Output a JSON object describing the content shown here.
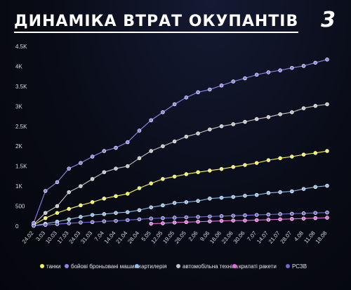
{
  "title": "ДИНАМІКА ВТРАТ ОКУПАНТІВ",
  "logo_text": "3",
  "chart_data": {
    "type": "line",
    "title": "ДИНАМІКА ВТРАТ ОКУПАНТІВ",
    "xlabel": "",
    "ylabel": "",
    "ylim": [
      0,
      4500
    ],
    "y_ticks": [
      0,
      500,
      1000,
      1500,
      2000,
      2500,
      3000,
      3500,
      4000,
      4500
    ],
    "y_tick_labels": [
      "0",
      "500",
      "1K",
      "1.5K",
      "2K",
      "2.5K",
      "3K",
      "3.5K",
      "4K",
      "4.5K"
    ],
    "grid": false,
    "legend_position": "bottom",
    "x": [
      "24.02",
      "3.03",
      "10.03",
      "17.03",
      "24.03",
      "31.03",
      "7.04",
      "14.04",
      "21.04",
      "28.04",
      "5.05",
      "12.05",
      "19.05",
      "26.05",
      "2.06",
      "9.06",
      "16.06",
      "23.06",
      "30.06",
      "7.07",
      "14.07",
      "21.07",
      "28.07",
      "4.08",
      "11.08",
      "18.08"
    ],
    "series": [
      {
        "name": "танки",
        "color": "#f5f54a",
        "values": [
          30,
          200,
          330,
          430,
          520,
          600,
          690,
          750,
          810,
          950,
          1070,
          1180,
          1240,
          1300,
          1350,
          1390,
          1430,
          1480,
          1530,
          1580,
          1650,
          1700,
          1740,
          1790,
          1830,
          1880
        ]
      },
      {
        "name": "бойові броньовані машини",
        "color": "#8b87ea",
        "values": [
          80,
          880,
          1100,
          1440,
          1580,
          1740,
          1880,
          1960,
          2100,
          2390,
          2650,
          2850,
          3050,
          3220,
          3350,
          3420,
          3520,
          3620,
          3700,
          3790,
          3850,
          3900,
          3960,
          4010,
          4090,
          4170
        ]
      },
      {
        "name": "артилерія",
        "color": "#8fbde8",
        "values": [
          10,
          60,
          110,
          170,
          230,
          280,
          300,
          330,
          350,
          400,
          470,
          520,
          580,
          600,
          630,
          690,
          710,
          730,
          760,
          780,
          830,
          850,
          870,
          930,
          980,
          1010
        ]
      },
      {
        "name": "автомобільна техніка",
        "color": "#c4c4c4",
        "values": [
          40,
          330,
          500,
          850,
          1000,
          1180,
          1350,
          1440,
          1500,
          1700,
          1880,
          2000,
          2120,
          2240,
          2320,
          2420,
          2500,
          2550,
          2610,
          2680,
          2730,
          2800,
          2850,
          2950,
          3010,
          3050
        ]
      },
      {
        "name": "крилаті ракети",
        "color": "#e46be0",
        "values": [
          0,
          0,
          0,
          0,
          0,
          0,
          0,
          0,
          0,
          0,
          60,
          70,
          90,
          100,
          110,
          120,
          130,
          140,
          140,
          150,
          160,
          170,
          180,
          190,
          200,
          210
        ]
      },
      {
        "name": "РСЗВ",
        "color": "#6f6ad0",
        "values": [
          10,
          30,
          50,
          70,
          90,
          100,
          120,
          130,
          150,
          170,
          190,
          200,
          210,
          220,
          230,
          240,
          250,
          260,
          270,
          280,
          290,
          300,
          310,
          320,
          330,
          340
        ]
      }
    ]
  }
}
